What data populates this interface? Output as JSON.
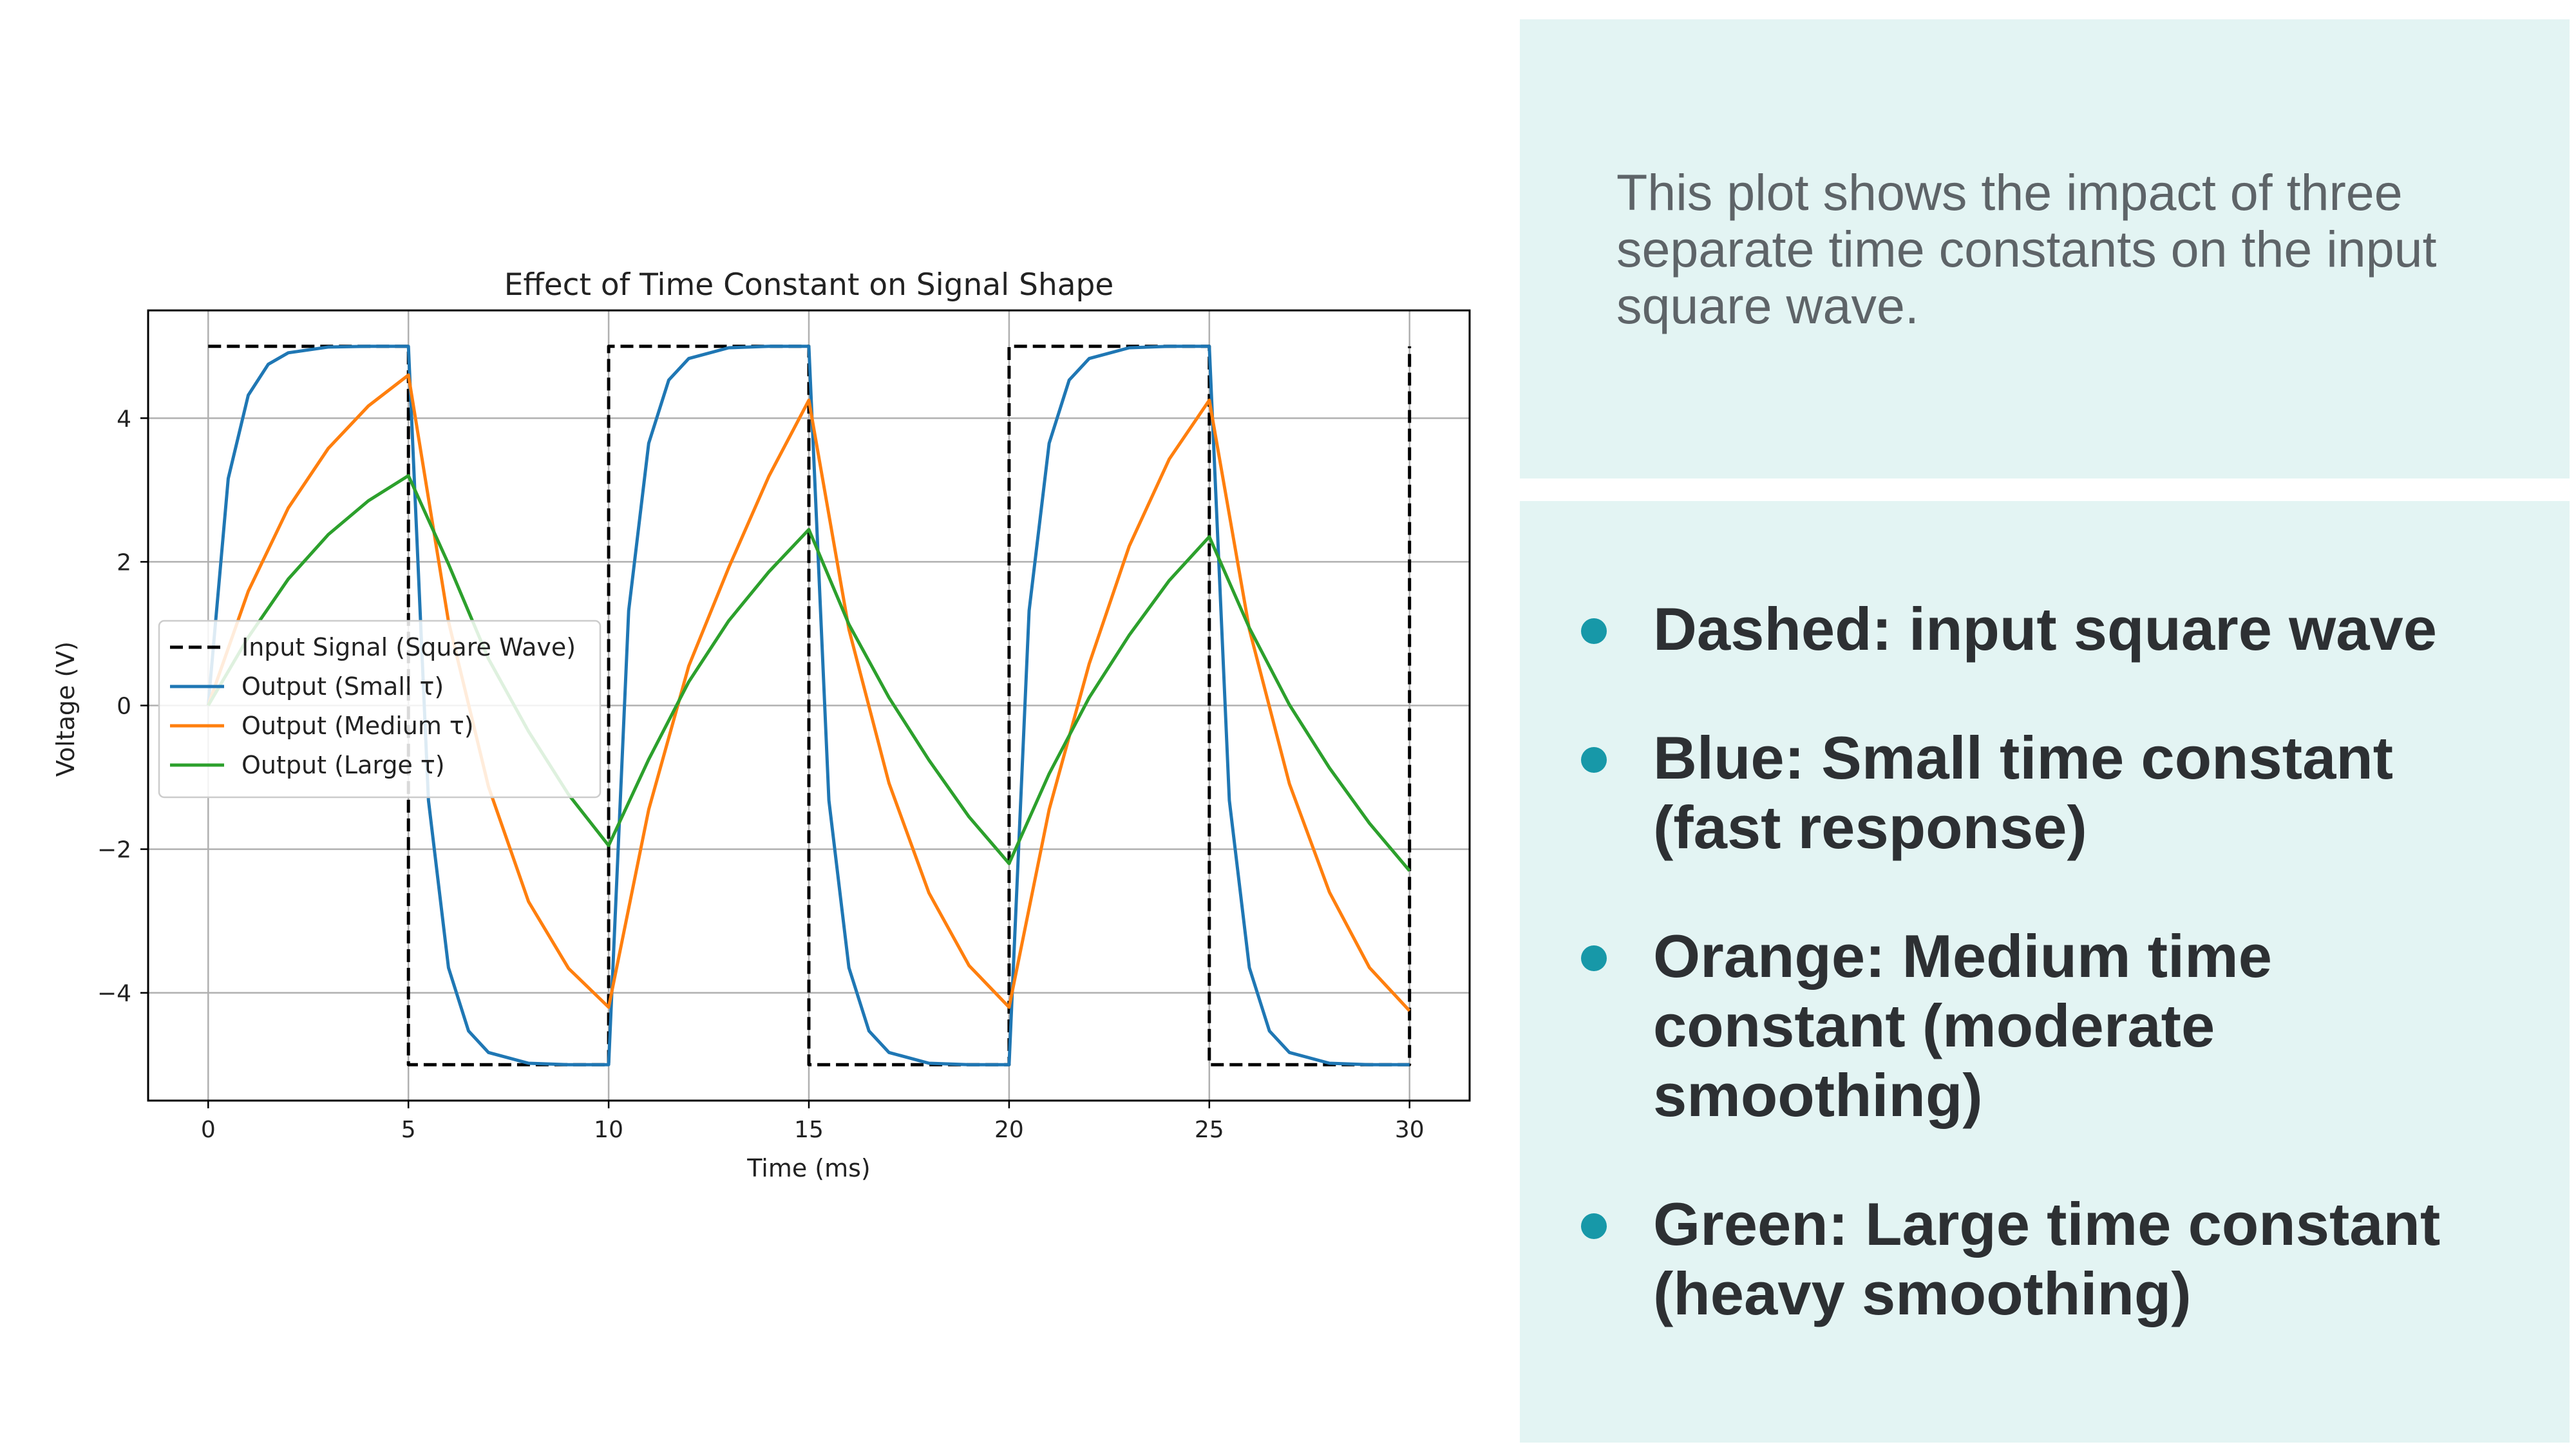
{
  "chart_data": {
    "type": "line",
    "title": "Effect of Time Constant on Signal Shape",
    "xlabel": "Time (ms)",
    "ylabel": "Voltage (V)",
    "xlim": [
      -1.5,
      31.5
    ],
    "ylim": [
      -5.5,
      5.5
    ],
    "xticks": [
      0,
      5,
      10,
      15,
      20,
      25,
      30
    ],
    "xtick_labels": [
      "0",
      "5",
      "10",
      "15",
      "20",
      "25",
      "30"
    ],
    "yticks": [
      -4,
      -2,
      0,
      2,
      4
    ],
    "ytick_labels": [
      "−4",
      "−2",
      "0",
      "2",
      "4"
    ],
    "grid": true,
    "legend_position": "center-left",
    "series": [
      {
        "name": "Input Signal (Square Wave)",
        "color": "#000000",
        "style": "dashed",
        "x": [
          0,
          5,
          5,
          10,
          10,
          15,
          15,
          20,
          20,
          25,
          25,
          30,
          30
        ],
        "y": [
          5,
          5,
          -5,
          -5,
          5,
          5,
          -5,
          -5,
          5,
          5,
          -5,
          -5,
          5
        ]
      },
      {
        "name": "Output (Small τ)",
        "color": "#1f77b4",
        "style": "solid",
        "x": [
          0,
          0.5,
          1,
          1.5,
          2,
          3,
          4,
          5,
          5.5,
          6,
          6.5,
          7,
          8,
          9,
          10,
          10.5,
          11,
          11.5,
          12,
          13,
          14,
          15,
          15.5,
          16,
          16.5,
          17,
          18,
          19,
          20,
          20.5,
          21,
          21.5,
          22,
          23,
          24,
          25,
          25.5,
          26,
          26.5,
          27,
          28,
          29,
          30
        ],
        "y": [
          0,
          3.16,
          4.32,
          4.75,
          4.91,
          4.99,
          5.0,
          5.0,
          -1.32,
          -3.65,
          -4.53,
          -4.83,
          -4.98,
          -5.0,
          -5.0,
          1.32,
          3.65,
          4.53,
          4.83,
          4.98,
          5.0,
          5.0,
          -1.32,
          -3.65,
          -4.53,
          -4.83,
          -4.98,
          -5.0,
          -5.0,
          1.32,
          3.65,
          4.53,
          4.83,
          4.98,
          5.0,
          5.0,
          -1.32,
          -3.65,
          -4.53,
          -4.83,
          -4.98,
          -5.0,
          -5.0
        ]
      },
      {
        "name": "Output (Medium τ)",
        "color": "#ff7f0e",
        "style": "solid",
        "x": [
          0,
          1,
          2,
          3,
          4,
          5,
          6,
          7,
          8,
          9,
          10,
          11,
          12,
          13,
          14,
          15,
          16,
          17,
          18,
          19,
          20,
          21,
          22,
          23,
          24,
          25,
          26,
          27,
          28,
          29,
          30
        ],
        "y": [
          0,
          1.59,
          2.75,
          3.58,
          4.17,
          4.6,
          1.17,
          -1.13,
          -2.73,
          -3.66,
          -4.2,
          -1.45,
          0.55,
          1.92,
          3.19,
          4.25,
          1.06,
          -1.08,
          -2.61,
          -3.62,
          -4.2,
          -1.45,
          0.58,
          2.22,
          3.43,
          4.25,
          1.06,
          -1.09,
          -2.6,
          -3.65,
          -4.25
        ]
      },
      {
        "name": "Output (Large τ)",
        "color": "#2ca02c",
        "style": "solid",
        "x": [
          0,
          1,
          2,
          3,
          4,
          5,
          6,
          7,
          8,
          9,
          10,
          11,
          12,
          13,
          14,
          15,
          16,
          17,
          18,
          19,
          20,
          21,
          22,
          23,
          24,
          25,
          26,
          27,
          28,
          29,
          30
        ],
        "y": [
          0,
          0.95,
          1.76,
          2.38,
          2.85,
          3.2,
          1.97,
          0.65,
          -0.36,
          -1.24,
          -1.95,
          -0.75,
          0.33,
          1.18,
          1.86,
          2.45,
          1.13,
          0.11,
          -0.76,
          -1.55,
          -2.2,
          -0.95,
          0.11,
          0.98,
          1.74,
          2.35,
          1.08,
          0.01,
          -0.87,
          -1.64,
          -2.3
        ]
      }
    ]
  },
  "panel_top": {
    "text": "This plot shows the impact of three separate time constants on the input square wave."
  },
  "panel_bottom": {
    "bullet_color": "#1798a8",
    "bullets": [
      "Dashed: input square wave",
      "Blue: Small time constant (fast response)",
      "Orange: Medium time constant (moderate smoothing)",
      "Green: Large time constant (heavy smoothing)"
    ]
  }
}
